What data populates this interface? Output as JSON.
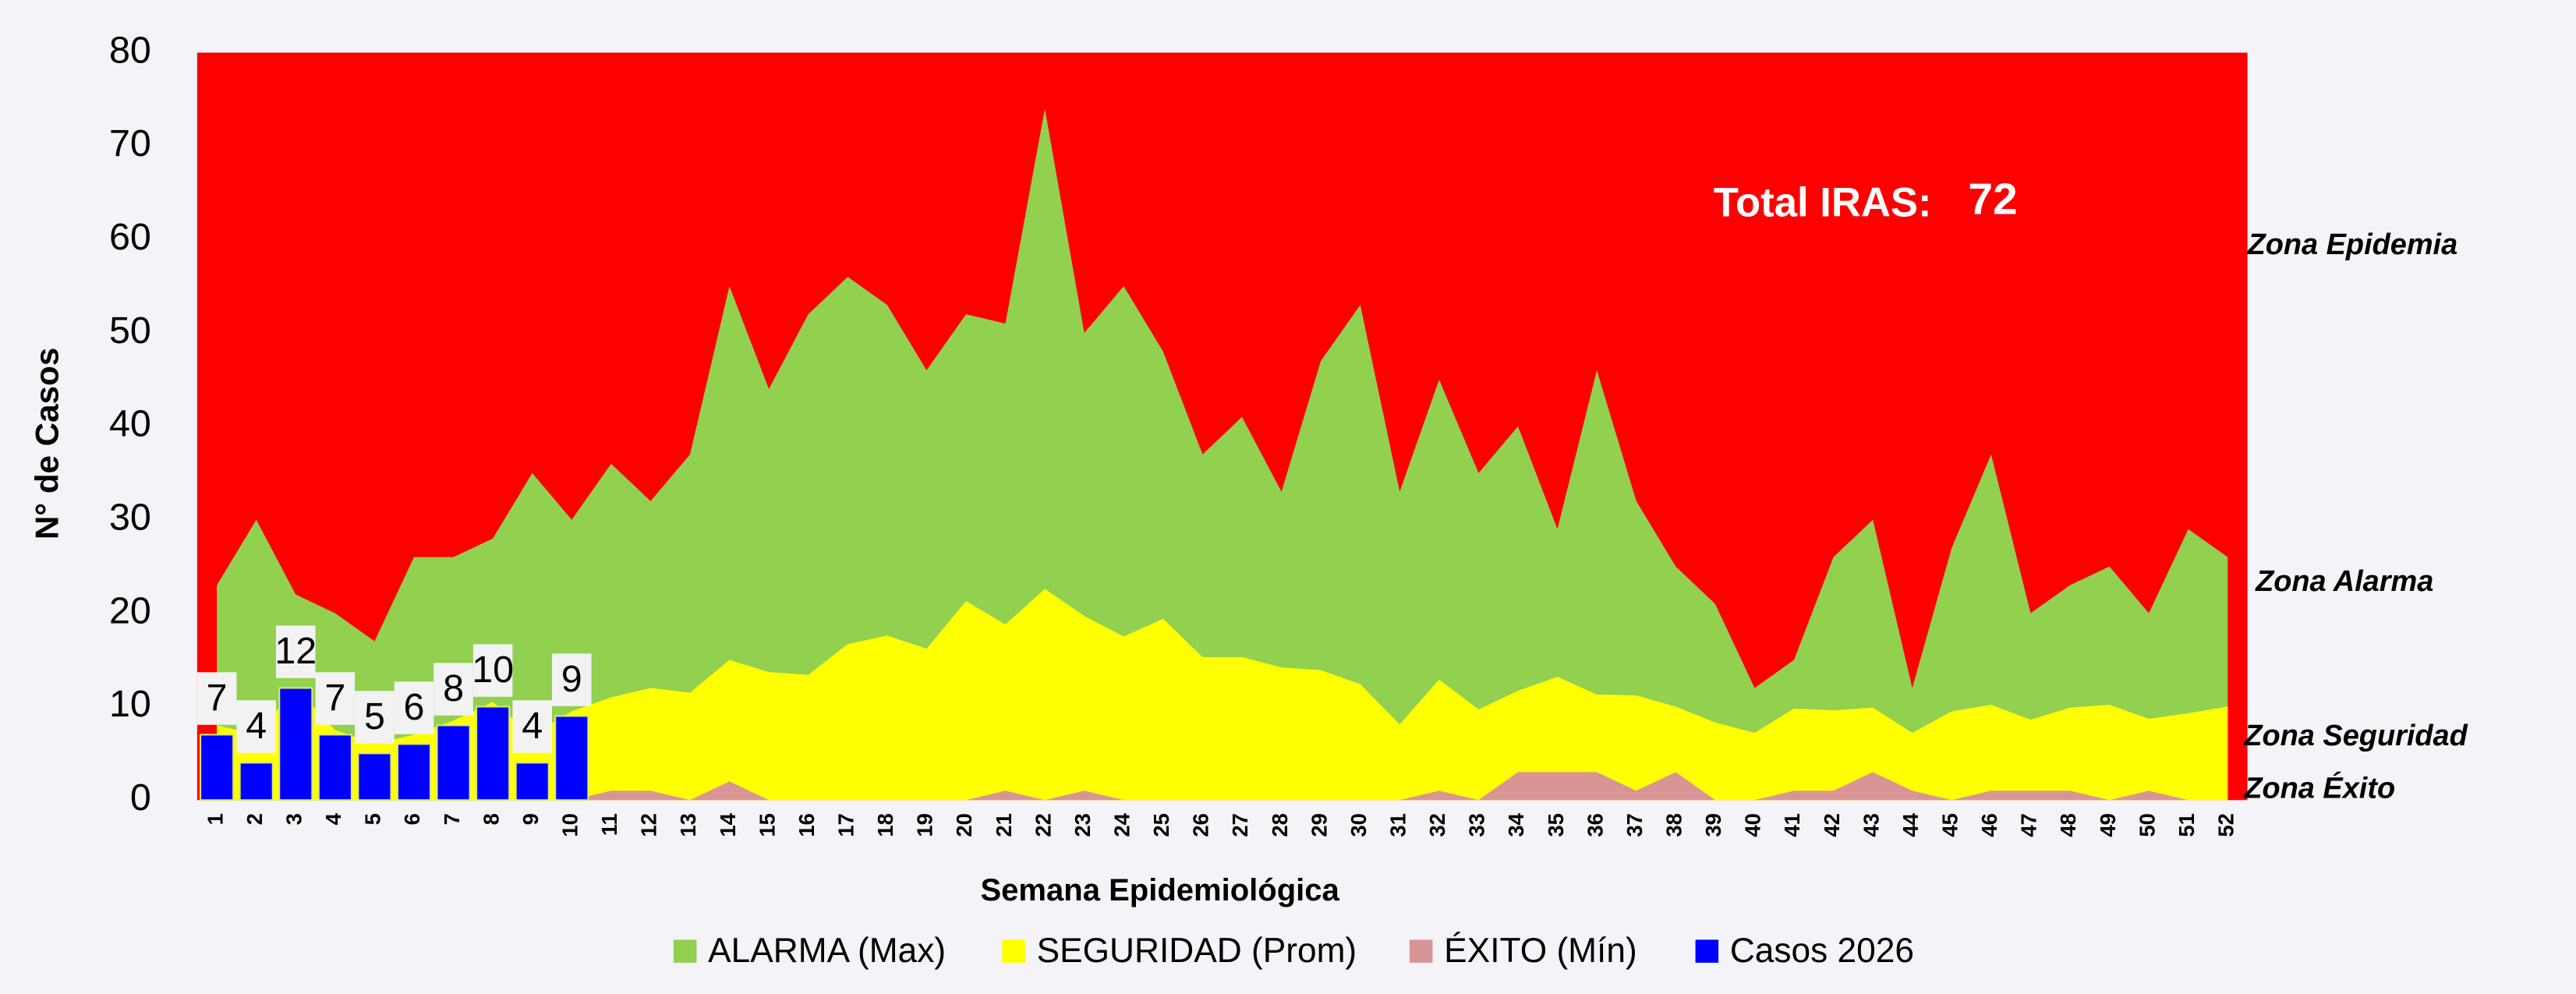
{
  "chart_data": {
    "type": "area",
    "plot_color": "#ff0000",
    "y_label": "N° de Casos",
    "x_label": "Semana Epidemiológica",
    "total_label": "Total IRAS:",
    "total_value": 72,
    "zone_labels": [
      "Zona Epidemia",
      "Zona  Alarma",
      "Zona Seguridad",
      "Zona Éxito"
    ],
    "ylim": [
      0,
      80
    ],
    "yticks": [
      0,
      10,
      20,
      30,
      40,
      50,
      60,
      70,
      80
    ],
    "categories": [
      1,
      2,
      3,
      4,
      5,
      6,
      7,
      8,
      9,
      10,
      11,
      12,
      13,
      14,
      15,
      16,
      17,
      18,
      19,
      20,
      21,
      22,
      23,
      24,
      25,
      26,
      27,
      28,
      29,
      30,
      31,
      32,
      33,
      34,
      35,
      36,
      37,
      38,
      39,
      40,
      41,
      42,
      43,
      44,
      45,
      46,
      47,
      48,
      49,
      50,
      51,
      52
    ],
    "series": [
      {
        "name": "ALARMA (Max)",
        "color": "#92d050",
        "values": [
          23,
          30,
          22,
          20,
          17,
          26,
          26,
          28,
          35,
          30,
          36,
          32,
          37,
          55,
          44,
          52,
          56,
          53,
          46,
          52,
          51,
          74,
          50,
          55,
          48,
          37,
          41,
          33,
          47,
          53,
          33,
          45,
          35,
          40,
          29,
          46,
          32,
          25,
          21,
          12,
          15,
          26,
          30,
          12,
          27,
          37,
          20,
          23,
          25,
          20,
          29,
          26
        ]
      },
      {
        "name": "SEGURIDAD (Prom)",
        "color": "#ffff00",
        "values": [
          8,
          7,
          12,
          7.5,
          6,
          7,
          8.5,
          10.5,
          7,
          9.5,
          11,
          12,
          11.5,
          15,
          13.7,
          13.4,
          16.7,
          17.6,
          16.2,
          21.3,
          18.8,
          22.6,
          19.7,
          17.5,
          19.4,
          15.3,
          15.3,
          14.2,
          13.9,
          12.4,
          8.1,
          12.9,
          9.7,
          11.7,
          13.2,
          11.3,
          11.2,
          10,
          8.3,
          7.2,
          9.8,
          9.6,
          9.9,
          7.2,
          9.5,
          10.2,
          8.6,
          9.9,
          10.2,
          8.7,
          9.3,
          10
        ]
      },
      {
        "name": "ÉXITO (Mín)",
        "color": "#d99594",
        "values": [
          0,
          0,
          0,
          0,
          0,
          0,
          0,
          0,
          0,
          0,
          1,
          1,
          0,
          2,
          0,
          0,
          0,
          0,
          0,
          0,
          1,
          0,
          1,
          0,
          0,
          0,
          0,
          0,
          0,
          0,
          0,
          1,
          0,
          3,
          3,
          3,
          1,
          3,
          0,
          0,
          1,
          1,
          3,
          1,
          0,
          1,
          1,
          1,
          0,
          1,
          0,
          0
        ]
      },
      {
        "name": "Casos 2026",
        "type": "bar",
        "color": "#0000ff",
        "values": [
          7,
          4,
          12,
          7,
          5,
          6,
          8,
          10,
          4,
          9,
          null,
          null,
          null,
          null,
          null,
          null,
          null,
          null,
          null,
          null,
          null,
          null,
          null,
          null,
          null,
          null,
          null,
          null,
          null,
          null,
          null,
          null,
          null,
          null,
          null,
          null,
          null,
          null,
          null,
          null,
          null,
          null,
          null,
          null,
          null,
          null,
          null,
          null,
          null,
          null,
          null,
          null
        ]
      }
    ]
  }
}
